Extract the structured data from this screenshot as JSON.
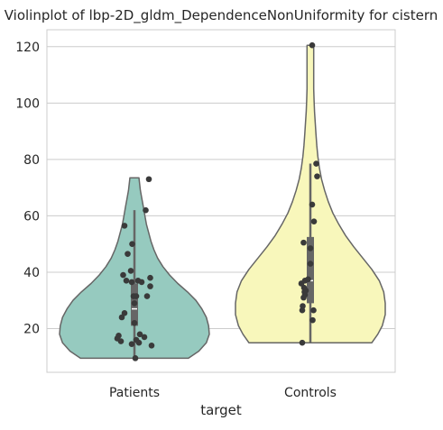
{
  "chart_data": {
    "type": "violin",
    "title": "Violinplot of lbp-2D_gldm_DependenceNonUniformity for cistern",
    "xlabel": "target",
    "ylabel": "",
    "ylim": [
      4.5,
      126
    ],
    "yticks": [
      20,
      40,
      60,
      80,
      100,
      120
    ],
    "grid": "horizontal",
    "categories": [
      "Patients",
      "Controls"
    ],
    "colors": [
      "#96cabf",
      "#f8f7bb"
    ],
    "violins": [
      {
        "category": "Patients",
        "min": 9.5,
        "max": 73.5,
        "whisker_low": 9.5,
        "whisker_high": 62,
        "q1": 21,
        "median": 27,
        "q3": 36,
        "density": [
          [
            9.5,
            0.72
          ],
          [
            12,
            0.86
          ],
          [
            15,
            0.96
          ],
          [
            18,
            1.0
          ],
          [
            21,
            0.99
          ],
          [
            24,
            0.96
          ],
          [
            27,
            0.9
          ],
          [
            30,
            0.82
          ],
          [
            33,
            0.71
          ],
          [
            36,
            0.58
          ],
          [
            39,
            0.47
          ],
          [
            42,
            0.38
          ],
          [
            45,
            0.31
          ],
          [
            48,
            0.26
          ],
          [
            51,
            0.22
          ],
          [
            54,
            0.19
          ],
          [
            57,
            0.16
          ],
          [
            60,
            0.14
          ],
          [
            63,
            0.12
          ],
          [
            66,
            0.1
          ],
          [
            69,
            0.08
          ],
          [
            73.5,
            0.06
          ]
        ],
        "points": [
          [
            9.5,
            0.02
          ],
          [
            14,
            0.38
          ],
          [
            14.5,
            -0.06
          ],
          [
            15,
            0.1
          ],
          [
            15.5,
            -0.3
          ],
          [
            16,
            0.04
          ],
          [
            16.5,
            -0.38
          ],
          [
            17,
            0.22
          ],
          [
            17.5,
            -0.35
          ],
          [
            18,
            0.12
          ],
          [
            22,
            0.0
          ],
          [
            24,
            -0.28
          ],
          [
            25.5,
            -0.22
          ],
          [
            29,
            0.0
          ],
          [
            31.5,
            -0.02
          ],
          [
            31.5,
            0.04
          ],
          [
            31.5,
            0.28
          ],
          [
            35,
            0.35
          ],
          [
            36.5,
            -0.06
          ],
          [
            36.5,
            0.16
          ],
          [
            37,
            -0.18
          ],
          [
            37,
            0.08
          ],
          [
            38,
            0.35
          ],
          [
            39,
            -0.25
          ],
          [
            40.5,
            -0.08
          ],
          [
            46.5,
            -0.15
          ],
          [
            50,
            -0.05
          ],
          [
            56.5,
            -0.22
          ],
          [
            62,
            0.25
          ],
          [
            73,
            0.32
          ]
        ]
      },
      {
        "category": "Controls",
        "min": 15,
        "max": 120.5,
        "whisker_low": 15,
        "whisker_high": 78.5,
        "q1": 29,
        "median": 37,
        "q3": 52.5,
        "density": [
          [
            15,
            0.82
          ],
          [
            18,
            0.9
          ],
          [
            21,
            0.96
          ],
          [
            25,
            1.0
          ],
          [
            29,
            1.0
          ],
          [
            33,
            0.98
          ],
          [
            37,
            0.92
          ],
          [
            41,
            0.82
          ],
          [
            45,
            0.7
          ],
          [
            49,
            0.58
          ],
          [
            53,
            0.47
          ],
          [
            57,
            0.38
          ],
          [
            61,
            0.3
          ],
          [
            65,
            0.24
          ],
          [
            69,
            0.19
          ],
          [
            73,
            0.15
          ],
          [
            77,
            0.12
          ],
          [
            81,
            0.1
          ],
          [
            85,
            0.085
          ],
          [
            89,
            0.075
          ],
          [
            93,
            0.065
          ],
          [
            97,
            0.055
          ],
          [
            101,
            0.05
          ],
          [
            105,
            0.045
          ],
          [
            110,
            0.045
          ],
          [
            115,
            0.045
          ],
          [
            120.5,
            0.045
          ]
        ],
        "points": [
          [
            15,
            -0.18
          ],
          [
            23,
            0.05
          ],
          [
            26.5,
            0.07
          ],
          [
            26.5,
            -0.18
          ],
          [
            28,
            -0.17
          ],
          [
            31,
            -0.15
          ],
          [
            32,
            -0.12
          ],
          [
            33,
            -0.13
          ],
          [
            33.5,
            -0.1
          ],
          [
            34.5,
            -0.14
          ],
          [
            36,
            -0.2
          ],
          [
            37,
            -0.12
          ],
          [
            37.5,
            -0.05
          ],
          [
            43,
            0.0
          ],
          [
            48.5,
            0.0
          ],
          [
            50.5,
            -0.15
          ],
          [
            58,
            0.08
          ],
          [
            64,
            0.04
          ],
          [
            74,
            0.15
          ],
          [
            78.5,
            0.13
          ],
          [
            120.5,
            0.04
          ]
        ]
      }
    ]
  }
}
